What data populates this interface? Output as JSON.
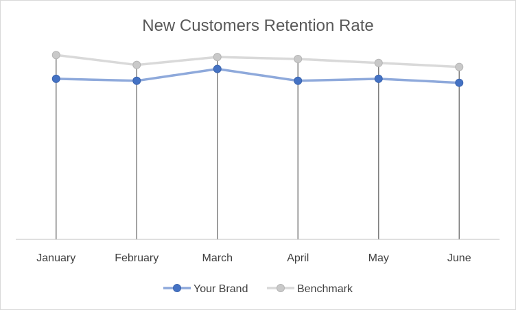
{
  "chart_data": {
    "type": "line",
    "title": "New Customers Retention Rate",
    "categories": [
      "January",
      "February",
      "March",
      "April",
      "May",
      "June"
    ],
    "series": [
      {
        "name": "Your Brand",
        "values": [
          0.81,
          0.8,
          0.86,
          0.8,
          0.81,
          0.79
        ],
        "color": "#4472c4"
      },
      {
        "name": "Benchmark",
        "values": [
          0.93,
          0.88,
          0.92,
          0.91,
          0.89,
          0.87
        ],
        "color": "#bfbfbf"
      }
    ],
    "ylim": [
      0,
      1.0
    ],
    "drop_lines": true,
    "grid": false,
    "legend": "bottom"
  }
}
